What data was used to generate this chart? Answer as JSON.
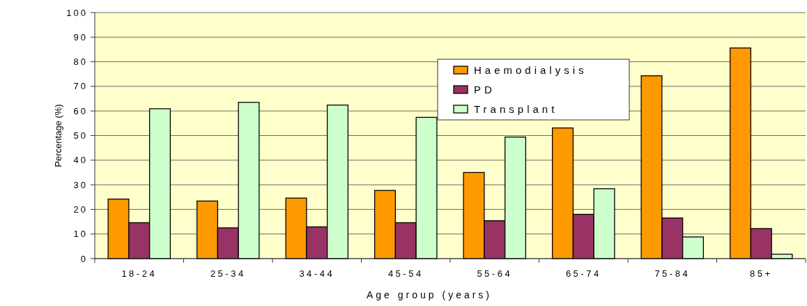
{
  "chart_data": {
    "type": "bar",
    "xlabel": "Age group (years)",
    "ylabel": "Percentage (%)",
    "categories": [
      "18-24",
      "25-34",
      "34-44",
      "45-54",
      "55-64",
      "65-74",
      "75-84",
      "85+"
    ],
    "series": [
      {
        "name": "Haemodialysis",
        "color": "#ff9900",
        "values": [
          24.2,
          23.4,
          24.6,
          27.7,
          35.0,
          53.1,
          74.3,
          85.6
        ]
      },
      {
        "name": "PD",
        "color": "#993366",
        "values": [
          14.6,
          12.5,
          12.9,
          14.6,
          15.4,
          18.0,
          16.5,
          12.2
        ]
      },
      {
        "name": "Transplant",
        "color": "#ccffcc",
        "values": [
          60.9,
          63.5,
          62.4,
          57.4,
          49.4,
          28.4,
          8.8,
          1.8
        ]
      }
    ],
    "ylim": [
      0,
      100
    ],
    "yticks": [
      0,
      10,
      20,
      30,
      40,
      50,
      60,
      70,
      80,
      90,
      100
    ],
    "grid": "y",
    "legend": "top right"
  }
}
